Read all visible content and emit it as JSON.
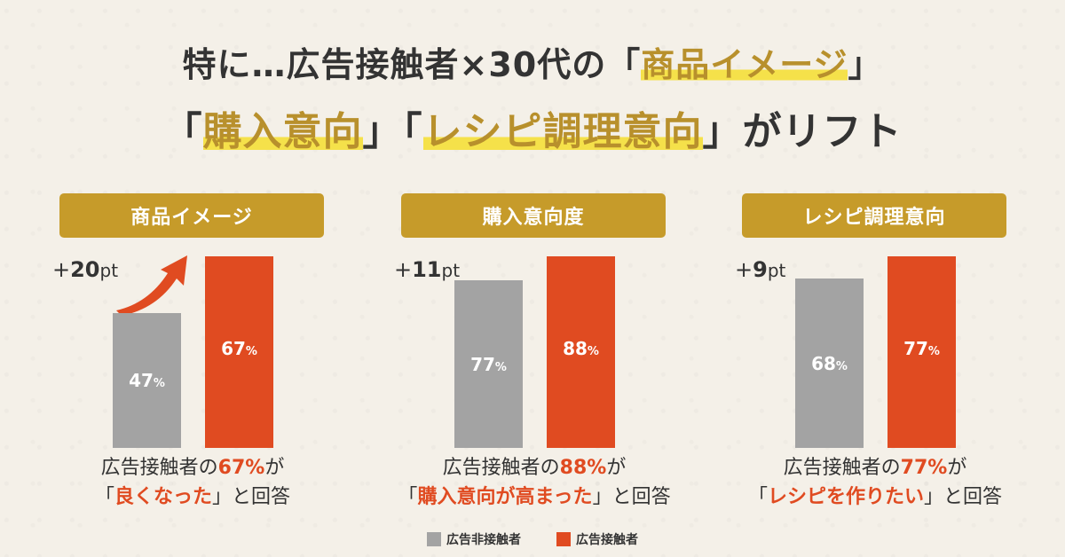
{
  "headline": {
    "line1_prefix": "特に…広告接触者×30代の「",
    "line1_accent": "商品イメージ",
    "line1_suffix": "」",
    "line2_open1": "「",
    "line2_accent1": "購入意向",
    "line2_close1": "」「",
    "line2_accent2": "レシピ調理意向",
    "line2_suffix": "」がリフト"
  },
  "chart_data": [
    {
      "type": "bar",
      "title": "商品イメージ",
      "categories": [
        "広告非接触者",
        "広告接触者"
      ],
      "values": [
        47,
        67
      ],
      "value_labels": [
        "47",
        "67"
      ],
      "unit": "%",
      "lift_sign": "+",
      "lift_value": "20",
      "lift_unit": "pt",
      "caption_prefix": "広告接触者の",
      "caption_pct": "67%",
      "caption_mid": "が",
      "caption_open": "「",
      "caption_quote": "良くなった",
      "caption_close": "」と回答",
      "ylim": [
        0,
        100
      ]
    },
    {
      "type": "bar",
      "title": "購入意向度",
      "categories": [
        "広告非接触者",
        "広告接触者"
      ],
      "values": [
        77,
        88
      ],
      "value_labels": [
        "77",
        "88"
      ],
      "unit": "%",
      "lift_sign": "+",
      "lift_value": "11",
      "lift_unit": "pt",
      "caption_prefix": "広告接触者の",
      "caption_pct": "88%",
      "caption_mid": "が",
      "caption_open": "「",
      "caption_quote": "購入意向が高まった",
      "caption_close": "」と回答",
      "ylim": [
        0,
        100
      ]
    },
    {
      "type": "bar",
      "title": "レシピ調理意向",
      "categories": [
        "広告非接触者",
        "広告接触者"
      ],
      "values": [
        68,
        77
      ],
      "value_labels": [
        "68",
        "77"
      ],
      "unit": "%",
      "lift_sign": "+",
      "lift_value": "9",
      "lift_unit": "pt",
      "caption_prefix": "広告接触者の",
      "caption_pct": "77%",
      "caption_mid": "が",
      "caption_open": "「",
      "caption_quote": "レシピを作りたい",
      "caption_close": "」と回答",
      "ylim": [
        0,
        100
      ]
    }
  ],
  "legend": {
    "nonexposed_label": "広告非接触者",
    "exposed_label": "広告接触者"
  },
  "colors": {
    "nonexposed": "#a3a3a3",
    "exposed": "#e04b21",
    "tag": "#c69b2a",
    "accent_text": "#b8902c",
    "highlight": "#f5e14a"
  },
  "icons": {
    "lift_arrow": "curved-up-arrow-icon"
  }
}
